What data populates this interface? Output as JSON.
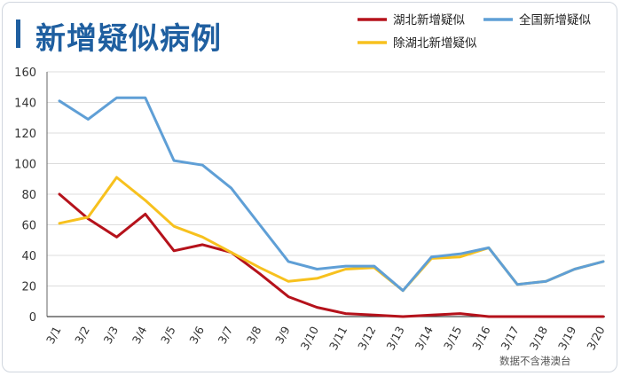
{
  "title": "新增疑似病例",
  "source_note": "数据不含港澳台",
  "colors": {
    "title": "#1f5fa0",
    "axis": "#333333",
    "grid": "#dcdcdc"
  },
  "chart_data": {
    "type": "line",
    "title": "新增疑似病例",
    "xlabel": "",
    "ylabel": "",
    "categories": [
      "3/1",
      "3/2",
      "3/3",
      "3/4",
      "3/5",
      "3/6",
      "3/7",
      "3/8",
      "3/9",
      "3/10",
      "3/11",
      "3/12",
      "3/13",
      "3/14",
      "3/15",
      "3/16",
      "3/17",
      "3/18",
      "3/19",
      "3/20"
    ],
    "ylim": [
      0,
      160
    ],
    "yticks": [
      0,
      20,
      40,
      60,
      80,
      100,
      120,
      140,
      160
    ],
    "grid": "horizontal",
    "legend_position": "top-right",
    "series": [
      {
        "name": "湖北新增疑似",
        "color": "#b5121b",
        "values": [
          80,
          64,
          52,
          67,
          43,
          47,
          42,
          28,
          13,
          6,
          2,
          1,
          0,
          1,
          2,
          0,
          0,
          0,
          0,
          0
        ]
      },
      {
        "name": "全国新增疑似",
        "color": "#5f9fd6",
        "values": [
          141,
          129,
          143,
          143,
          102,
          99,
          84,
          60,
          36,
          31,
          33,
          33,
          17,
          39,
          41,
          45,
          21,
          23,
          31,
          36
        ]
      },
      {
        "name": "除湖北新增疑似",
        "color": "#f7c11e",
        "values": [
          61,
          65,
          91,
          76,
          59,
          52,
          42,
          32,
          23,
          25,
          31,
          32,
          17,
          38,
          39,
          45,
          21,
          23,
          31,
          36
        ]
      }
    ]
  }
}
